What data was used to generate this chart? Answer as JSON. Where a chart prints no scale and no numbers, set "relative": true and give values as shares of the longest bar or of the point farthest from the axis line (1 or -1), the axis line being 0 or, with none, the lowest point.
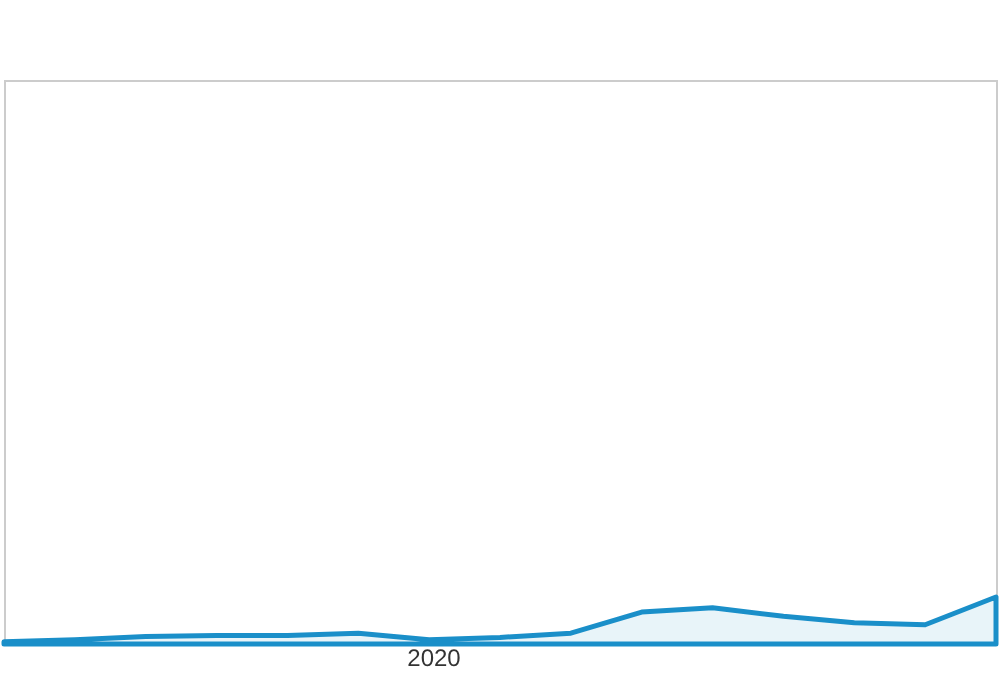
{
  "chart_data": {
    "type": "area",
    "relative": true,
    "categories": [
      null,
      null,
      null,
      null,
      null,
      null,
      null,
      null,
      null,
      null,
      null,
      null,
      null,
      null,
      null
    ],
    "annotations": [
      "2020"
    ],
    "series": [
      {
        "color": "#1a8fc9",
        "values": [
          0.05,
          0.09,
          0.16,
          0.18,
          0.18,
          0.23,
          0.09,
          0.14,
          0.23,
          0.68,
          0.77,
          0.59,
          0.45,
          0.41,
          1.0
        ]
      }
    ]
  }
}
